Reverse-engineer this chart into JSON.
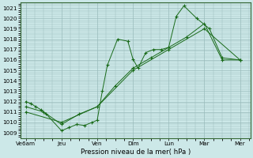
{
  "background_color": "#cce8e8",
  "grid_color": "#99bbbb",
  "line_color": "#1a6b1a",
  "marker_color": "#1a6b1a",
  "xlabel": "Pression niveau de la mer( hPa )",
  "ylim": [
    1008.5,
    1021.5
  ],
  "yticks": [
    1009,
    1010,
    1011,
    1012,
    1013,
    1014,
    1015,
    1016,
    1017,
    1018,
    1019,
    1020,
    1021
  ],
  "xtick_labels": [
    "Ve6am",
    "Jeu",
    "Ven",
    "Dim",
    "Lun",
    "Mar",
    "Mer"
  ],
  "xtick_positions": [
    0,
    14,
    28,
    42,
    56,
    70,
    84
  ],
  "xlim": [
    -2,
    88
  ],
  "series1_x": [
    0,
    2,
    4,
    6,
    8,
    14,
    17,
    20,
    23,
    26,
    28,
    30,
    32,
    36,
    40,
    42,
    44,
    47,
    50,
    53,
    56,
    59,
    62,
    67,
    72,
    77,
    84
  ],
  "series1_y": [
    1012.0,
    1011.8,
    1011.5,
    1011.2,
    1010.8,
    1009.2,
    1009.5,
    1009.8,
    1009.7,
    1010.0,
    1010.2,
    1013.0,
    1015.5,
    1018.0,
    1017.8,
    1016.1,
    1015.2,
    1016.7,
    1017.0,
    1017.0,
    1017.2,
    1020.2,
    1021.2,
    1020.0,
    1019.0,
    1016.2,
    1016.0
  ],
  "series2_x": [
    0,
    7,
    14,
    21,
    28,
    35,
    42,
    49,
    56,
    63,
    70,
    77,
    84
  ],
  "series2_y": [
    1011.5,
    1011.0,
    1009.8,
    1010.8,
    1011.5,
    1013.5,
    1015.2,
    1016.2,
    1017.2,
    1018.2,
    1019.5,
    1016.0,
    1016.0
  ],
  "series3_x": [
    0,
    14,
    28,
    42,
    56,
    70,
    84
  ],
  "series3_y": [
    1011.0,
    1010.0,
    1011.5,
    1015.0,
    1017.0,
    1019.0,
    1016.0
  ]
}
